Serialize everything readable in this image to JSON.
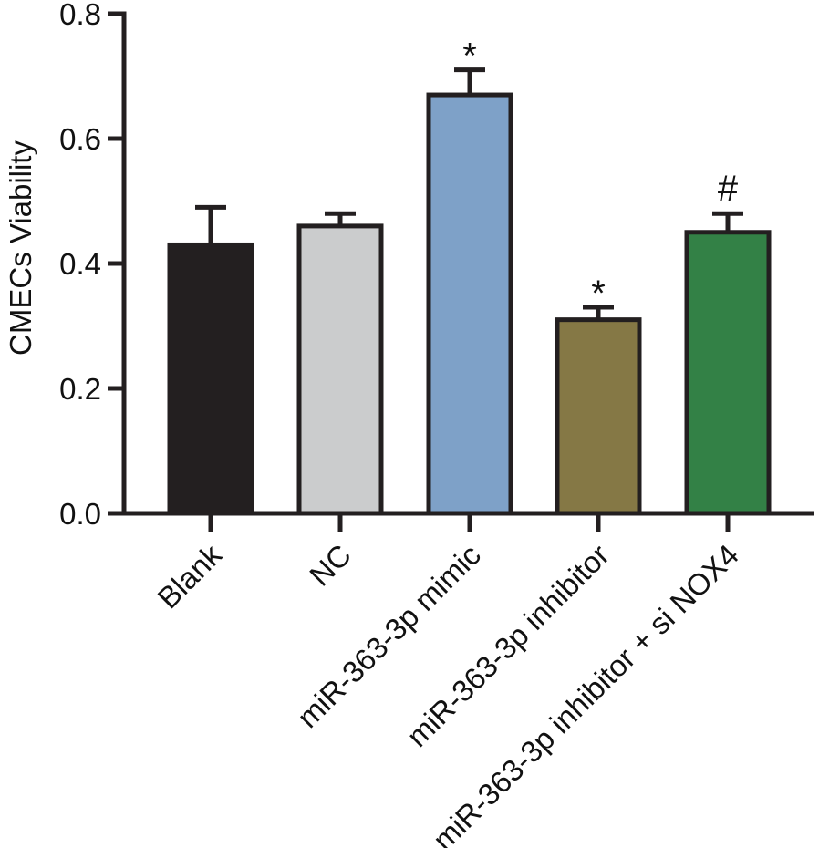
{
  "chart_data": {
    "type": "bar",
    "title": "",
    "xlabel": "",
    "ylabel": "CMECs Viability",
    "ylim": [
      0,
      0.8
    ],
    "yticks": [
      "0.0",
      "0.2",
      "0.4",
      "0.6",
      "0.8"
    ],
    "grid": false,
    "legend": "none",
    "categories": [
      "Blank",
      "NC",
      "miR-363-3p mimic",
      "miR-363-3p inhibitor",
      "miR-363-3p inhibitor + si NOX4"
    ],
    "values": [
      0.43,
      0.46,
      0.67,
      0.31,
      0.45
    ],
    "errors": [
      0.06,
      0.02,
      0.04,
      0.02,
      0.03
    ],
    "colors": [
      "#231f20",
      "#cbcccd",
      "#7ea1c8",
      "#857845",
      "#338146"
    ],
    "annotations": [
      "",
      "",
      "*",
      "*",
      "#"
    ]
  }
}
